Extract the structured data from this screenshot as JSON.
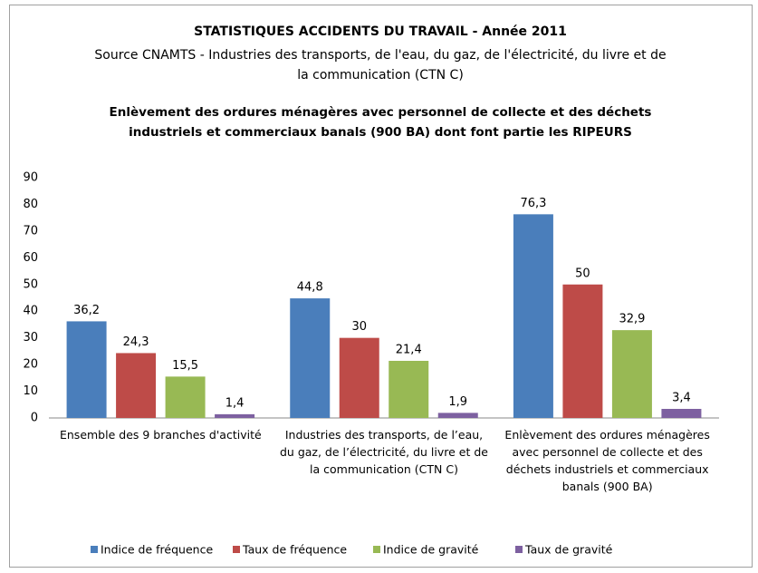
{
  "chart_data": {
    "type": "bar",
    "title": "STATISTIQUES ACCIDENTS DU TRAVAIL - Année 2011",
    "subtitle": "Source CNAMTS - Industries des transports, de l'eau, du gaz, de l'électricité, du livre et de la communication  (CTN C)",
    "chart_title": "Enlèvement des ordures ménagères avec personnel de collecte et des déchets industriels et commerciaux banals (900 BA) dont font partie les RIPEURS",
    "categories": [
      "Ensemble des 9 branches d'activité",
      "Industries des transports, de l’eau, du gaz, de l’électricité, du livre et de la communication (CTN C)",
      "Enlèvement des ordures ménagères avec personnel de collecte et des déchets industriels et commerciaux banals (900 BA)"
    ],
    "series": [
      {
        "name": "Indice de fréquence",
        "color": "#4a7ebb",
        "values": [
          36.2,
          44.8,
          76.3
        ],
        "value_labels": [
          "36,2",
          "44,8",
          "76,3"
        ]
      },
      {
        "name": "Taux de fréquence",
        "color": "#be4b48",
        "values": [
          24.3,
          30,
          50
        ],
        "value_labels": [
          "24,3",
          "30",
          "50"
        ]
      },
      {
        "name": "Indice de gravité",
        "color": "#98b954",
        "values": [
          15.5,
          21.4,
          32.9
        ],
        "value_labels": [
          "15,5",
          "21,4",
          "32,9"
        ]
      },
      {
        "name": "Taux de gravité",
        "color": "#7d60a0",
        "values": [
          1.4,
          1.9,
          3.4
        ],
        "value_labels": [
          "1,4",
          "1,9",
          "3,4"
        ]
      }
    ],
    "ylim": [
      0,
      90
    ],
    "yticks": [
      0,
      10,
      20,
      30,
      40,
      50,
      60,
      70,
      80,
      90
    ],
    "grid": false,
    "legend": "bottom"
  }
}
